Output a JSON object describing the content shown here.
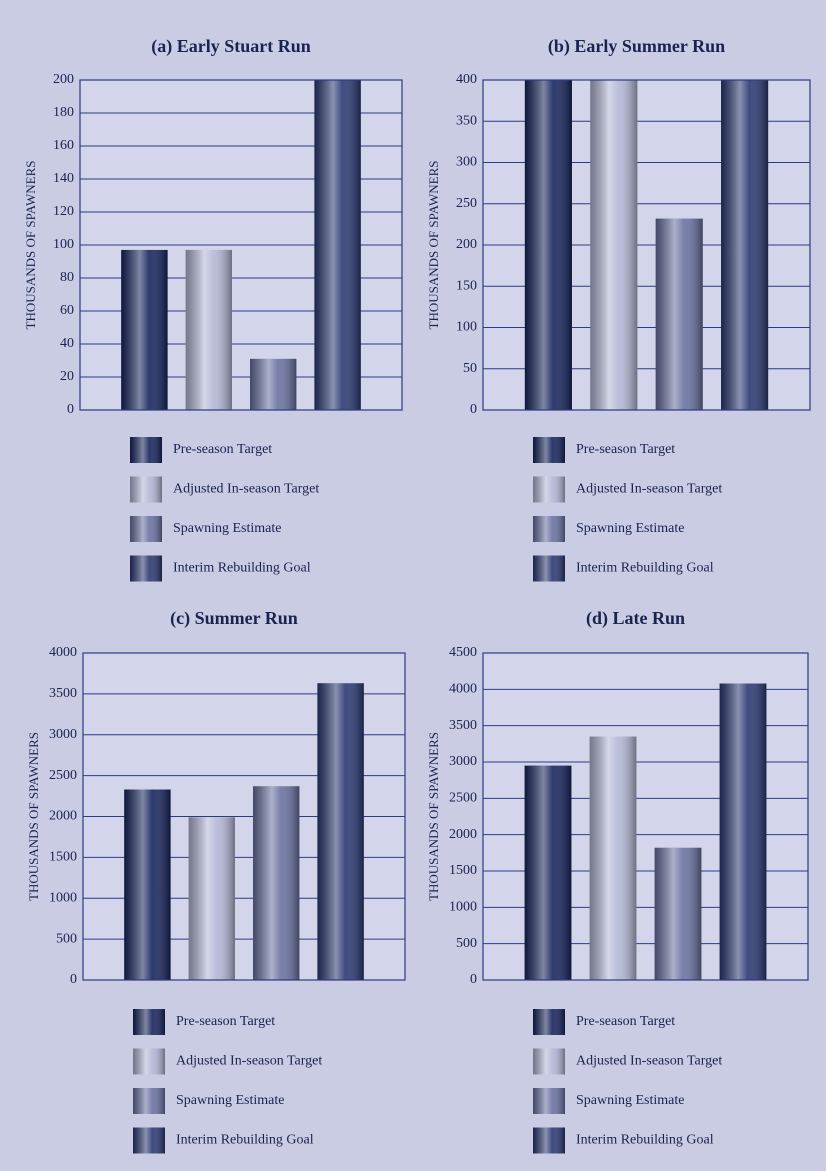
{
  "chart_data": [
    {
      "type": "bar",
      "title": "(a) Early Stuart Run",
      "y_label": "THOUSANDS OF SPAWNERS",
      "ylim": [
        0,
        200
      ],
      "yticks": [
        0,
        20,
        40,
        60,
        80,
        100,
        120,
        140,
        160,
        180,
        200
      ],
      "grid": true,
      "series": [
        {
          "name": "Pre-season Target",
          "color": "#16245c",
          "values": [
            97
          ]
        },
        {
          "name": "Adjusted In-season Target",
          "color": "#b3b7d6",
          "values": [
            97
          ]
        },
        {
          "name": "Spawning Estimate",
          "color": "#6971a0",
          "values": [
            31
          ]
        },
        {
          "name": "Interim Rebuilding Goal",
          "color": "#2a3872",
          "values": [
            200
          ]
        }
      ]
    },
    {
      "type": "bar",
      "title": "(b) Early Summer Run",
      "y_label": "THOUSANDS OF SPAWNERS",
      "ylim": [
        0,
        400
      ],
      "yticks": [
        0,
        50,
        100,
        150,
        200,
        250,
        300,
        350,
        400
      ],
      "grid": true,
      "series": [
        {
          "name": "Pre-season Target",
          "color": "#16245c",
          "values": [
            400
          ]
        },
        {
          "name": "Adjusted In-season Target",
          "color": "#b3b7d6",
          "values": [
            400
          ]
        },
        {
          "name": "Spawning Estimate",
          "color": "#6971a0",
          "values": [
            232
          ]
        },
        {
          "name": "Interim Rebuilding Goal",
          "color": "#2a3872",
          "values": [
            400
          ]
        }
      ]
    },
    {
      "type": "bar",
      "title": "(c) Summer Run",
      "y_label": "THOUSANDS OF SPAWNERS",
      "ylim": [
        0,
        4000
      ],
      "yticks": [
        0,
        500,
        1000,
        1500,
        2000,
        2500,
        3000,
        3500,
        4000
      ],
      "grid": true,
      "series": [
        {
          "name": "Pre-season Target",
          "color": "#16245c",
          "values": [
            2330
          ]
        },
        {
          "name": "Adjusted In-season Target",
          "color": "#b3b7d6",
          "values": [
            1990
          ]
        },
        {
          "name": "Spawning Estimate",
          "color": "#6971a0",
          "values": [
            2370
          ]
        },
        {
          "name": "Interim Rebuilding Goal",
          "color": "#2a3872",
          "values": [
            3630
          ]
        }
      ]
    },
    {
      "type": "bar",
      "title": "(d) Late Run",
      "y_label": "THOUSANDS OF SPAWNERS",
      "ylim": [
        0,
        4500
      ],
      "yticks": [
        0,
        500,
        1000,
        1500,
        2000,
        2500,
        3000,
        3500,
        4000,
        4500
      ],
      "grid": true,
      "series": [
        {
          "name": "Pre-season Target",
          "color": "#16245c",
          "values": [
            2950
          ]
        },
        {
          "name": "Adjusted In-season Target",
          "color": "#b3b7d6",
          "values": [
            3350
          ]
        },
        {
          "name": "Spawning Estimate",
          "color": "#6971a0",
          "values": [
            1820
          ]
        },
        {
          "name": "Interim Rebuilding Goal",
          "color": "#2a3872",
          "values": [
            4080
          ]
        }
      ]
    }
  ]
}
